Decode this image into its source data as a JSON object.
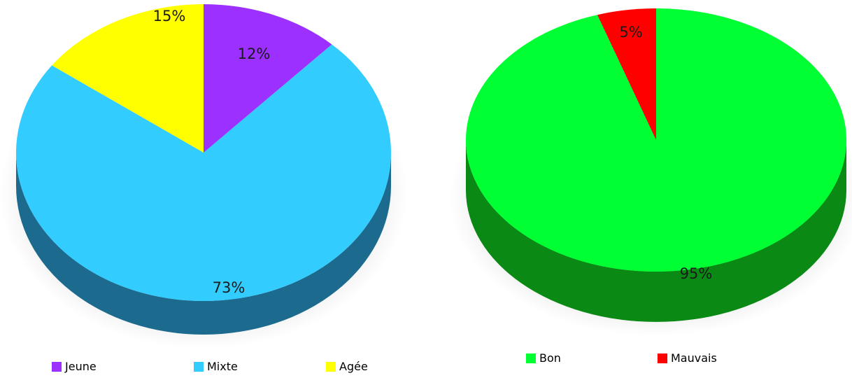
{
  "chart_data": [
    {
      "type": "pie",
      "categories": [
        "Jeune",
        "Mixte",
        "Agée"
      ],
      "values": [
        12,
        73,
        15
      ],
      "labels": [
        "12%",
        "73%",
        "15%"
      ],
      "colors": [
        "#9b30ff",
        "#33ccff",
        "#ffff00"
      ],
      "side_color": "#1d6a8f",
      "legend_position": "bottom"
    },
    {
      "type": "pie",
      "categories": [
        "Bon",
        "Mauvais"
      ],
      "values": [
        95,
        5
      ],
      "labels": [
        "95%",
        "5%"
      ],
      "colors": [
        "#00ff33",
        "#ff0000"
      ],
      "side_color": "#0a8a14",
      "legend_position": "bottom"
    }
  ]
}
